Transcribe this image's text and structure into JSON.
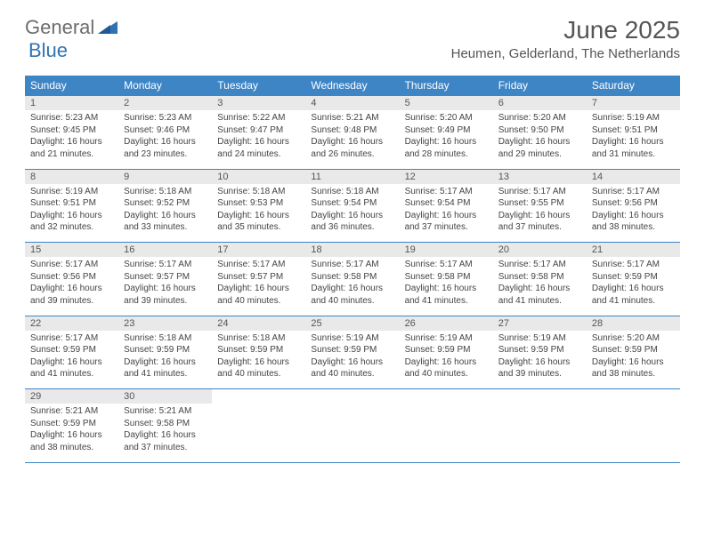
{
  "brand": {
    "general": "General",
    "blue": "Blue"
  },
  "title": "June 2025",
  "location": "Heumen, Gelderland, The Netherlands",
  "colors": {
    "header_bg": "#3e85c6",
    "header_text": "#ffffff",
    "daynum_bg": "#e9e9e9",
    "border": "#3e85c6",
    "body_text": "#444444",
    "title_text": "#555555"
  },
  "fonts": {
    "title_size": 28,
    "location_size": 15,
    "th_size": 12,
    "daynum_size": 11,
    "cell_size": 10
  },
  "weekdays": [
    "Sunday",
    "Monday",
    "Tuesday",
    "Wednesday",
    "Thursday",
    "Friday",
    "Saturday"
  ],
  "weeks": [
    [
      {
        "n": "1",
        "sr": "5:23 AM",
        "ss": "9:45 PM",
        "dl": "16 hours and 21 minutes."
      },
      {
        "n": "2",
        "sr": "5:23 AM",
        "ss": "9:46 PM",
        "dl": "16 hours and 23 minutes."
      },
      {
        "n": "3",
        "sr": "5:22 AM",
        "ss": "9:47 PM",
        "dl": "16 hours and 24 minutes."
      },
      {
        "n": "4",
        "sr": "5:21 AM",
        "ss": "9:48 PM",
        "dl": "16 hours and 26 minutes."
      },
      {
        "n": "5",
        "sr": "5:20 AM",
        "ss": "9:49 PM",
        "dl": "16 hours and 28 minutes."
      },
      {
        "n": "6",
        "sr": "5:20 AM",
        "ss": "9:50 PM",
        "dl": "16 hours and 29 minutes."
      },
      {
        "n": "7",
        "sr": "5:19 AM",
        "ss": "9:51 PM",
        "dl": "16 hours and 31 minutes."
      }
    ],
    [
      {
        "n": "8",
        "sr": "5:19 AM",
        "ss": "9:51 PM",
        "dl": "16 hours and 32 minutes."
      },
      {
        "n": "9",
        "sr": "5:18 AM",
        "ss": "9:52 PM",
        "dl": "16 hours and 33 minutes."
      },
      {
        "n": "10",
        "sr": "5:18 AM",
        "ss": "9:53 PM",
        "dl": "16 hours and 35 minutes."
      },
      {
        "n": "11",
        "sr": "5:18 AM",
        "ss": "9:54 PM",
        "dl": "16 hours and 36 minutes."
      },
      {
        "n": "12",
        "sr": "5:17 AM",
        "ss": "9:54 PM",
        "dl": "16 hours and 37 minutes."
      },
      {
        "n": "13",
        "sr": "5:17 AM",
        "ss": "9:55 PM",
        "dl": "16 hours and 37 minutes."
      },
      {
        "n": "14",
        "sr": "5:17 AM",
        "ss": "9:56 PM",
        "dl": "16 hours and 38 minutes."
      }
    ],
    [
      {
        "n": "15",
        "sr": "5:17 AM",
        "ss": "9:56 PM",
        "dl": "16 hours and 39 minutes."
      },
      {
        "n": "16",
        "sr": "5:17 AM",
        "ss": "9:57 PM",
        "dl": "16 hours and 39 minutes."
      },
      {
        "n": "17",
        "sr": "5:17 AM",
        "ss": "9:57 PM",
        "dl": "16 hours and 40 minutes."
      },
      {
        "n": "18",
        "sr": "5:17 AM",
        "ss": "9:58 PM",
        "dl": "16 hours and 40 minutes."
      },
      {
        "n": "19",
        "sr": "5:17 AM",
        "ss": "9:58 PM",
        "dl": "16 hours and 41 minutes."
      },
      {
        "n": "20",
        "sr": "5:17 AM",
        "ss": "9:58 PM",
        "dl": "16 hours and 41 minutes."
      },
      {
        "n": "21",
        "sr": "5:17 AM",
        "ss": "9:59 PM",
        "dl": "16 hours and 41 minutes."
      }
    ],
    [
      {
        "n": "22",
        "sr": "5:17 AM",
        "ss": "9:59 PM",
        "dl": "16 hours and 41 minutes."
      },
      {
        "n": "23",
        "sr": "5:18 AM",
        "ss": "9:59 PM",
        "dl": "16 hours and 41 minutes."
      },
      {
        "n": "24",
        "sr": "5:18 AM",
        "ss": "9:59 PM",
        "dl": "16 hours and 40 minutes."
      },
      {
        "n": "25",
        "sr": "5:19 AM",
        "ss": "9:59 PM",
        "dl": "16 hours and 40 minutes."
      },
      {
        "n": "26",
        "sr": "5:19 AM",
        "ss": "9:59 PM",
        "dl": "16 hours and 40 minutes."
      },
      {
        "n": "27",
        "sr": "5:19 AM",
        "ss": "9:59 PM",
        "dl": "16 hours and 39 minutes."
      },
      {
        "n": "28",
        "sr": "5:20 AM",
        "ss": "9:59 PM",
        "dl": "16 hours and 38 minutes."
      }
    ],
    [
      {
        "n": "29",
        "sr": "5:21 AM",
        "ss": "9:59 PM",
        "dl": "16 hours and 38 minutes."
      },
      {
        "n": "30",
        "sr": "5:21 AM",
        "ss": "9:58 PM",
        "dl": "16 hours and 37 minutes."
      },
      null,
      null,
      null,
      null,
      null
    ]
  ],
  "labels": {
    "sunrise": "Sunrise: ",
    "sunset": "Sunset: ",
    "daylight": "Daylight: "
  }
}
